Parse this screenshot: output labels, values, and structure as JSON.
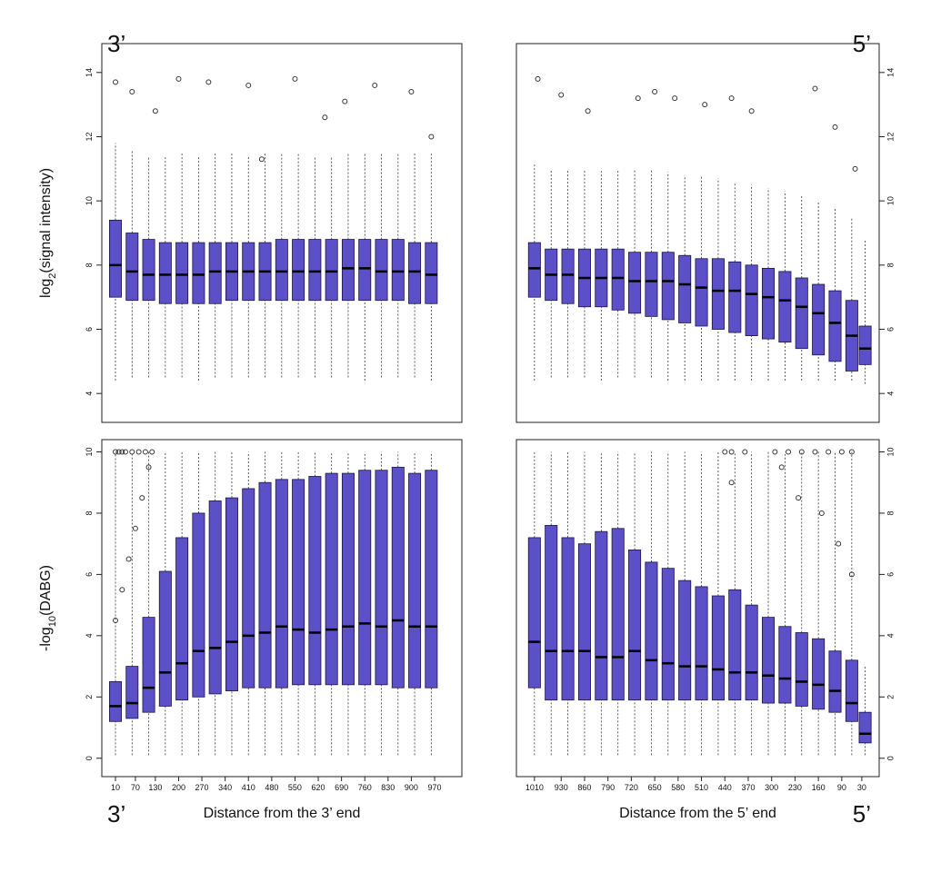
{
  "annotations": [
    "3’",
    "5’",
    "3’",
    "5’"
  ],
  "chart_data": [
    {
      "type": "box",
      "ylabel": [
        "log",
        "2",
        "(signal intensity)"
      ],
      "yaxis_side": "left",
      "color": "#5b50c8",
      "xlim": [
        -31,
        1052
      ],
      "ylim": [
        3.1,
        14.9
      ],
      "yticks": [
        4,
        6,
        8,
        10,
        12,
        14
      ],
      "x": [
        10,
        60,
        110,
        160,
        210,
        260,
        310,
        360,
        410,
        460,
        510,
        560,
        610,
        660,
        710,
        760,
        810,
        860,
        910,
        960
      ],
      "lo": [
        4.4,
        4.5,
        4.5,
        4.5,
        4.5,
        4.4,
        4.5,
        4.5,
        4.5,
        4.5,
        4.5,
        4.5,
        4.5,
        4.5,
        4.5,
        4.4,
        4.5,
        4.5,
        4.5,
        4.4
      ],
      "q1": [
        7.0,
        6.9,
        6.9,
        6.8,
        6.8,
        6.8,
        6.8,
        6.9,
        6.9,
        6.9,
        6.9,
        6.9,
        6.9,
        6.9,
        6.9,
        6.9,
        6.9,
        6.9,
        6.8,
        6.8
      ],
      "median": [
        8.0,
        7.8,
        7.7,
        7.7,
        7.7,
        7.7,
        7.8,
        7.8,
        7.8,
        7.8,
        7.8,
        7.8,
        7.8,
        7.8,
        7.9,
        7.9,
        7.8,
        7.8,
        7.8,
        7.7
      ],
      "q3": [
        9.4,
        9.0,
        8.8,
        8.7,
        8.7,
        8.7,
        8.7,
        8.7,
        8.7,
        8.7,
        8.8,
        8.8,
        8.8,
        8.8,
        8.8,
        8.8,
        8.8,
        8.8,
        8.7,
        8.7
      ],
      "hi": [
        11.8,
        11.6,
        11.4,
        11.4,
        11.5,
        11.4,
        11.5,
        11.5,
        11.4,
        11.5,
        11.5,
        11.5,
        11.4,
        11.4,
        11.5,
        11.5,
        11.5,
        11.5,
        11.5,
        11.5
      ],
      "outliers": {
        "x": [
          10,
          60,
          130,
          200,
          290,
          410,
          450,
          550,
          640,
          700,
          790,
          900,
          960
        ],
        "y": [
          13.7,
          13.4,
          12.8,
          13.8,
          13.7,
          13.6,
          11.3,
          13.8,
          12.6,
          13.1,
          13.6,
          13.4,
          12.0
        ]
      }
    },
    {
      "type": "box",
      "yaxis_side": "right",
      "color": "#5b50c8",
      "xlim": [
        1064,
        -22
      ],
      "ylim": [
        3.1,
        14.9
      ],
      "yticks": [
        4,
        6,
        8,
        10,
        12,
        14
      ],
      "x": [
        1010,
        960,
        910,
        860,
        810,
        760,
        710,
        660,
        610,
        560,
        510,
        460,
        410,
        360,
        310,
        260,
        210,
        160,
        110,
        60,
        20
      ],
      "lo": [
        4.4,
        4.5,
        4.5,
        4.5,
        4.4,
        4.5,
        4.5,
        4.5,
        4.4,
        4.4,
        4.4,
        4.4,
        4.4,
        4.4,
        4.4,
        4.4,
        4.4,
        4.4,
        4.4,
        4.4,
        4.3
      ],
      "q1": [
        7.0,
        6.9,
        6.8,
        6.7,
        6.7,
        6.6,
        6.5,
        6.4,
        6.3,
        6.2,
        6.1,
        6.0,
        5.9,
        5.8,
        5.7,
        5.6,
        5.4,
        5.2,
        5.0,
        4.7,
        4.9
      ],
      "median": [
        7.9,
        7.7,
        7.7,
        7.6,
        7.6,
        7.6,
        7.5,
        7.5,
        7.5,
        7.4,
        7.3,
        7.2,
        7.2,
        7.1,
        7.0,
        6.9,
        6.7,
        6.5,
        6.2,
        5.8,
        5.4
      ],
      "q3": [
        8.7,
        8.5,
        8.5,
        8.5,
        8.5,
        8.5,
        8.4,
        8.4,
        8.4,
        8.3,
        8.2,
        8.2,
        8.1,
        8.0,
        7.9,
        7.8,
        7.6,
        7.4,
        7.2,
        6.9,
        6.1
      ],
      "hi": [
        11.2,
        11.0,
        11.0,
        11.0,
        11.0,
        11.0,
        11.0,
        11.0,
        10.9,
        10.8,
        10.8,
        10.7,
        10.6,
        10.5,
        10.4,
        10.3,
        10.2,
        10.0,
        9.8,
        9.5,
        8.8
      ],
      "outliers": {
        "x": [
          1000,
          930,
          850,
          700,
          650,
          590,
          500,
          420,
          360,
          170,
          110,
          50
        ],
        "y": [
          13.8,
          13.3,
          12.8,
          13.2,
          13.4,
          13.2,
          13.0,
          13.2,
          12.8,
          13.5,
          12.3,
          11.0
        ]
      }
    },
    {
      "type": "box",
      "ylabel": [
        "-log",
        "10",
        "(DABG)"
      ],
      "xlabel": "Distance from the 3’ end",
      "yaxis_side": "left",
      "color": "#5b50c8",
      "xlim": [
        -31,
        1052
      ],
      "ylim": [
        -0.6,
        10.4
      ],
      "yticks": [
        0,
        2,
        4,
        6,
        8,
        10
      ],
      "xticks": [
        10,
        70,
        130,
        200,
        270,
        340,
        410,
        480,
        550,
        620,
        690,
        760,
        830,
        900,
        970
      ],
      "x": [
        10,
        60,
        110,
        160,
        210,
        260,
        310,
        360,
        410,
        460,
        510,
        560,
        610,
        660,
        710,
        760,
        810,
        860,
        910,
        960
      ],
      "lo": [
        0.1,
        0.1,
        0.1,
        0.1,
        0.1,
        0.1,
        0.1,
        0.1,
        0.1,
        0.1,
        0.1,
        0.1,
        0.1,
        0.1,
        0.1,
        0.1,
        0.1,
        0.1,
        0.1,
        0.1
      ],
      "q1": [
        1.2,
        1.3,
        1.5,
        1.7,
        1.9,
        2.0,
        2.1,
        2.2,
        2.3,
        2.3,
        2.3,
        2.4,
        2.4,
        2.4,
        2.4,
        2.4,
        2.4,
        2.3,
        2.3,
        2.3
      ],
      "median": [
        1.7,
        1.8,
        2.3,
        2.8,
        3.1,
        3.5,
        3.6,
        3.8,
        4.0,
        4.1,
        4.3,
        4.2,
        4.1,
        4.2,
        4.3,
        4.4,
        4.3,
        4.5,
        4.3,
        4.3
      ],
      "q3": [
        2.5,
        3.0,
        4.6,
        6.1,
        7.2,
        8.0,
        8.4,
        8.5,
        8.8,
        9.0,
        9.1,
        9.1,
        9.2,
        9.3,
        9.3,
        9.4,
        9.4,
        9.5,
        9.3,
        9.4
      ],
      "hi": [
        10,
        10,
        10,
        10,
        10,
        10,
        10,
        10,
        10,
        10,
        10,
        10,
        10,
        10,
        10,
        10,
        10,
        10,
        10,
        10
      ],
      "outliers": {
        "x": [
          10,
          20,
          30,
          40,
          60,
          80,
          100,
          120,
          10,
          30,
          50,
          70,
          90,
          110
        ],
        "y": [
          10,
          10,
          10,
          10,
          10,
          10,
          10,
          10,
          4.5,
          5.5,
          6.5,
          7.5,
          8.5,
          9.5
        ]
      }
    },
    {
      "type": "box",
      "xlabel": "Distance from the 5’ end",
      "yaxis_side": "right",
      "color": "#5b50c8",
      "xlim": [
        1064,
        -22
      ],
      "ylim": [
        -0.6,
        10.4
      ],
      "yticks": [
        0,
        2,
        4,
        6,
        8,
        10
      ],
      "xticks": [
        1010,
        930,
        860,
        790,
        720,
        650,
        580,
        510,
        440,
        370,
        300,
        230,
        160,
        90,
        30
      ],
      "x": [
        1010,
        960,
        910,
        860,
        810,
        760,
        710,
        660,
        610,
        560,
        510,
        460,
        410,
        360,
        310,
        260,
        210,
        160,
        110,
        60,
        20
      ],
      "lo": [
        0.1,
        0.1,
        0.1,
        0.1,
        0.1,
        0.1,
        0.1,
        0.1,
        0.1,
        0.1,
        0.1,
        0.1,
        0.1,
        0.1,
        0.1,
        0.1,
        0.1,
        0.1,
        0.1,
        0.1,
        0.1
      ],
      "q1": [
        2.3,
        1.9,
        1.9,
        1.9,
        1.9,
        1.9,
        1.9,
        1.9,
        1.9,
        1.9,
        1.9,
        1.9,
        1.9,
        1.9,
        1.8,
        1.8,
        1.7,
        1.6,
        1.5,
        1.2,
        0.5
      ],
      "median": [
        3.8,
        3.5,
        3.5,
        3.5,
        3.3,
        3.3,
        3.5,
        3.2,
        3.1,
        3.0,
        3.0,
        2.9,
        2.8,
        2.8,
        2.7,
        2.6,
        2.5,
        2.4,
        2.2,
        1.8,
        0.8
      ],
      "q3": [
        7.2,
        7.6,
        7.2,
        7.0,
        7.4,
        7.5,
        6.8,
        6.4,
        6.2,
        5.8,
        5.6,
        5.3,
        5.5,
        5.0,
        4.6,
        4.3,
        4.1,
        3.9,
        3.5,
        3.2,
        1.5
      ],
      "hi": [
        10,
        10,
        10,
        10,
        10,
        10,
        10,
        10,
        10,
        10,
        10,
        10,
        10,
        10,
        10,
        10,
        10,
        10,
        10,
        10,
        3.0
      ],
      "outliers": {
        "x": [
          440,
          420,
          380,
          290,
          250,
          210,
          170,
          130,
          90,
          60,
          420,
          270,
          220,
          150,
          100,
          60
        ],
        "y": [
          10,
          10,
          10,
          10,
          10,
          10,
          10,
          10,
          10,
          10,
          9.0,
          9.5,
          8.5,
          8.0,
          7.0,
          6.0
        ]
      }
    }
  ]
}
